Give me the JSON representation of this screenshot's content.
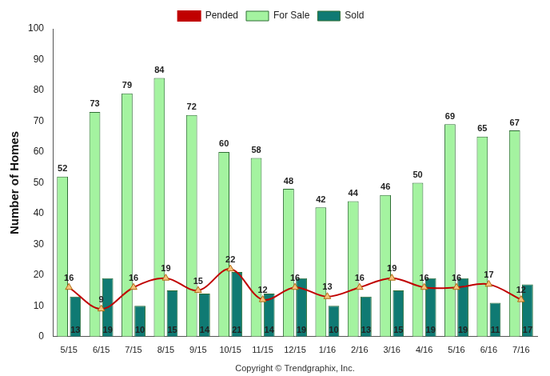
{
  "chart_data": {
    "type": "bar",
    "categories": [
      "5/15",
      "6/15",
      "7/15",
      "8/15",
      "9/15",
      "10/15",
      "11/15",
      "12/15",
      "1/16",
      "2/16",
      "3/16",
      "4/16",
      "5/16",
      "6/16",
      "7/16"
    ],
    "series": [
      {
        "name": "For Sale",
        "color": "#a4f3a0",
        "values": [
          52,
          73,
          79,
          84,
          72,
          60,
          58,
          48,
          42,
          44,
          46,
          50,
          69,
          65,
          67
        ]
      },
      {
        "name": "Sold",
        "color": "#0f7a73",
        "values": [
          13,
          19,
          10,
          15,
          14,
          21,
          14,
          19,
          10,
          13,
          15,
          19,
          19,
          11,
          17
        ]
      },
      {
        "name": "Pended",
        "type": "line",
        "color": "#c00000",
        "marker": "triangle",
        "line_style": "solid",
        "values": [
          16,
          9,
          16,
          19,
          15,
          22,
          12,
          16,
          13,
          16,
          19,
          16,
          16,
          17,
          12
        ]
      }
    ],
    "y_label": "Number of Homes",
    "ylim": [
      0,
      100
    ],
    "yticks": [
      0,
      10,
      20,
      30,
      40,
      50,
      60,
      70,
      80,
      90,
      100
    ],
    "grid": false,
    "legend": "top",
    "data_labels": true,
    "annotations": [
      "Copyright © Trendgraphix, Inc."
    ]
  }
}
